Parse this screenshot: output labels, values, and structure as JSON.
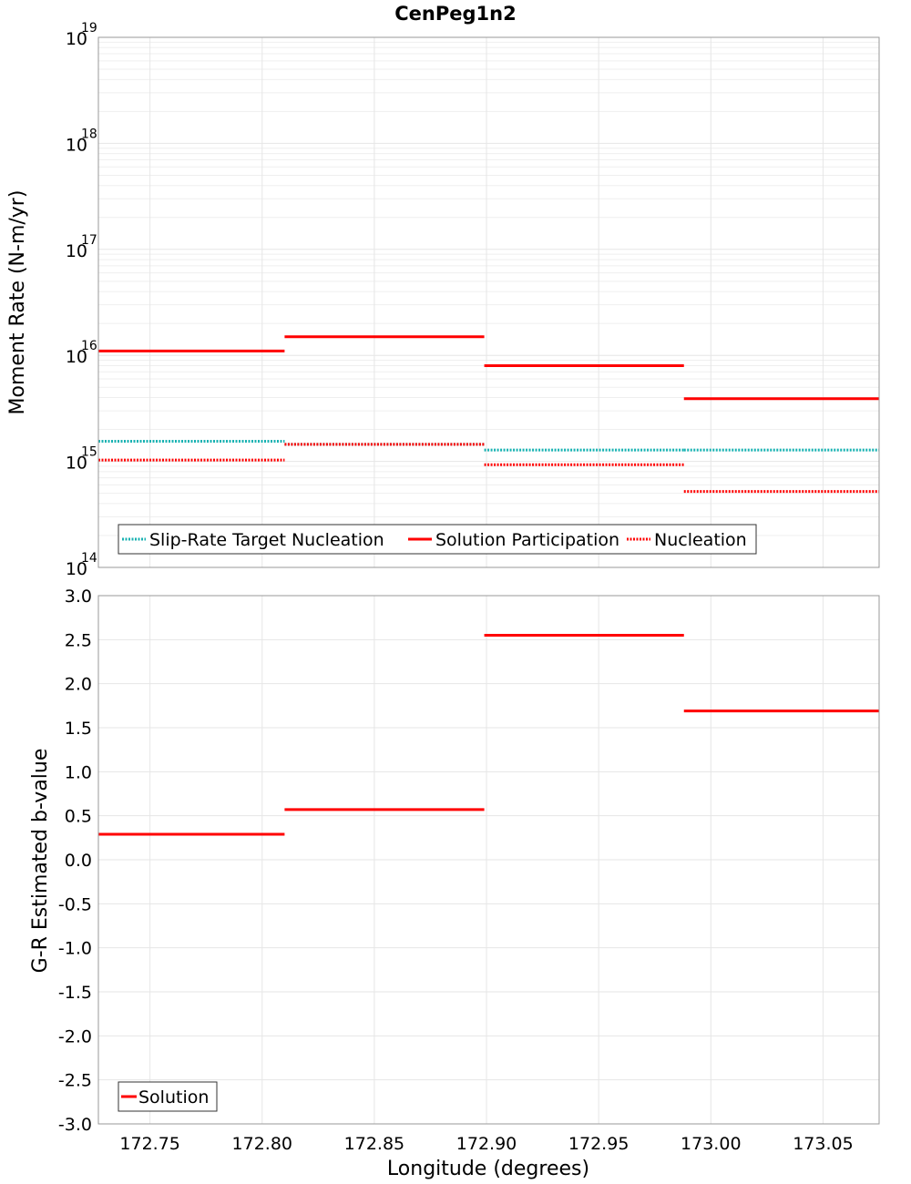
{
  "chart_data": [
    {
      "type": "line",
      "title": "CenPeg1n2",
      "ylabel": "Moment Rate (N-m/yr)",
      "xlabel": "",
      "yscale": "log",
      "ylim": [
        100000000000000.0,
        1e+19
      ],
      "xlim": [
        172.727,
        173.075
      ],
      "ytick_base": "10",
      "yticks_exp": [
        "14",
        "15",
        "16",
        "17",
        "18",
        "19"
      ],
      "legend_position": "bottom-left",
      "series": [
        {
          "name": "Slip-Rate Target Nucleation",
          "color": "#18b2b2",
          "style": "dotted",
          "segments": [
            {
              "x": [
                172.727,
                172.81
              ],
              "y": 1550000000000000.0
            },
            {
              "x": [
                172.81,
                172.899
              ],
              "y": 1450000000000000.0
            },
            {
              "x": [
                172.899,
                172.988
              ],
              "y": 1280000000000000.0
            },
            {
              "x": [
                172.988,
                173.075
              ],
              "y": 1280000000000000.0
            }
          ]
        },
        {
          "name": "Solution Participation",
          "color": "#ff0000",
          "style": "solid",
          "segments": [
            {
              "x": [
                172.727,
                172.81
              ],
              "y": 1.1e+16
            },
            {
              "x": [
                172.81,
                172.899
              ],
              "y": 1.5e+16
            },
            {
              "x": [
                172.899,
                172.988
              ],
              "y": 8000000000000000.0
            },
            {
              "x": [
                172.988,
                173.075
              ],
              "y": 3900000000000000.0
            }
          ]
        },
        {
          "name": "Nucleation",
          "color": "#ff0000",
          "style": "dotted",
          "segments": [
            {
              "x": [
                172.727,
                172.81
              ],
              "y": 1030000000000000.0
            },
            {
              "x": [
                172.81,
                172.899
              ],
              "y": 1450000000000000.0
            },
            {
              "x": [
                172.899,
                172.988
              ],
              "y": 930000000000000.0
            },
            {
              "x": [
                172.988,
                173.075
              ],
              "y": 520000000000000.0
            }
          ]
        }
      ]
    },
    {
      "type": "line",
      "title": "",
      "ylabel": "G-R Estimated b-value",
      "xlabel": "Longitude (degrees)",
      "ylim": [
        -3.0,
        3.0
      ],
      "xlim": [
        172.727,
        173.075
      ],
      "yticks": [
        "-3.0",
        "-2.5",
        "-2.0",
        "-1.5",
        "-1.0",
        "-0.5",
        "0.0",
        "0.5",
        "1.0",
        "1.5",
        "2.0",
        "2.5",
        "3.0"
      ],
      "xticks": [
        "172.75",
        "172.80",
        "172.85",
        "172.90",
        "172.95",
        "173.00",
        "173.05"
      ],
      "legend_position": "bottom-left",
      "series": [
        {
          "name": "Solution",
          "color": "#ff0000",
          "style": "solid",
          "segments": [
            {
              "x": [
                172.727,
                172.81
              ],
              "y": 0.29
            },
            {
              "x": [
                172.81,
                172.899
              ],
              "y": 0.57
            },
            {
              "x": [
                172.899,
                172.988
              ],
              "y": 2.55
            },
            {
              "x": [
                172.988,
                173.075
              ],
              "y": 1.69
            }
          ]
        }
      ]
    }
  ]
}
